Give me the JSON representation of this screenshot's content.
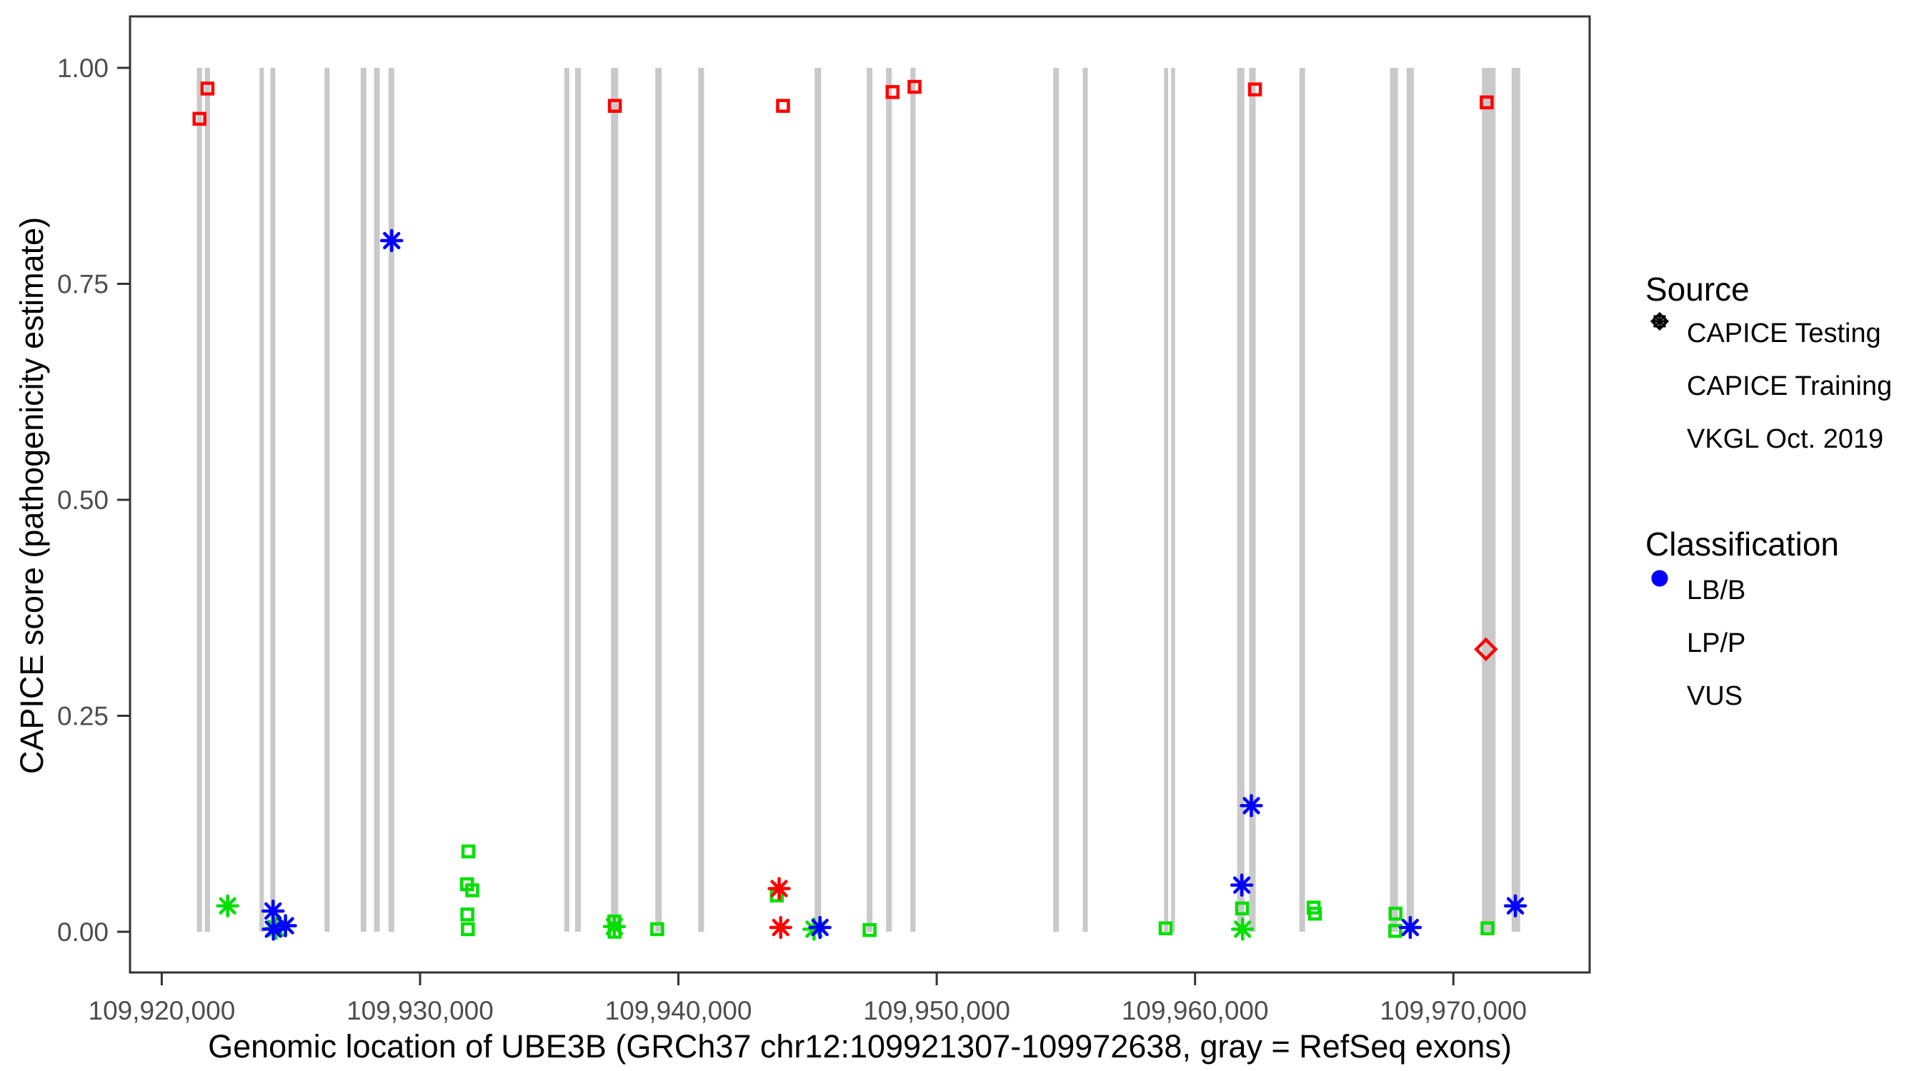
{
  "chart_data": {
    "type": "scatter",
    "title": "",
    "xlabel": "Genomic location of UBE3B (GRCh37 chr12:109921307-109972638, gray = RefSeq exons)",
    "ylabel": "CAPICE score (pathogenicity estimate)",
    "x_domain": [
      109918772,
      109975275
    ],
    "ylim": [
      0,
      1
    ],
    "x_ticks": [
      {
        "value": 109920000,
        "label": "109,920,000"
      },
      {
        "value": 109930000,
        "label": "109,930,000"
      },
      {
        "value": 109940000,
        "label": "109,940,000"
      },
      {
        "value": 109950000,
        "label": "109,950,000"
      },
      {
        "value": 109960000,
        "label": "109,960,000"
      },
      {
        "value": 109970000,
        "label": "109,970,000"
      }
    ],
    "y_ticks": [
      {
        "value": 0.0,
        "label": "0.00"
      },
      {
        "value": 0.25,
        "label": "0.25"
      },
      {
        "value": 0.5,
        "label": "0.50"
      },
      {
        "value": 0.75,
        "label": "0.75"
      },
      {
        "value": 1.0,
        "label": "1.00"
      }
    ],
    "exons_note": "gray vertical bars = RefSeq exons, drawn from score 0 to 1; [center_bp, width_bp]",
    "exons": [
      [
        109921460,
        200
      ],
      [
        109921770,
        200
      ],
      [
        109923870,
        170
      ],
      [
        109924300,
        195
      ],
      [
        109926400,
        195
      ],
      [
        109927810,
        220
      ],
      [
        109928330,
        220
      ],
      [
        109928890,
        220
      ],
      [
        109935680,
        195
      ],
      [
        109936110,
        220
      ],
      [
        109937530,
        280
      ],
      [
        109939230,
        250
      ],
      [
        109940880,
        220
      ],
      [
        109945400,
        250
      ],
      [
        109947400,
        220
      ],
      [
        109948150,
        220
      ],
      [
        109949080,
        200
      ],
      [
        109954620,
        220
      ],
      [
        109955750,
        195
      ],
      [
        109958880,
        160
      ],
      [
        109959150,
        150
      ],
      [
        109961770,
        280
      ],
      [
        109962220,
        250
      ],
      [
        109964150,
        220
      ],
      [
        109967700,
        310
      ],
      [
        109968330,
        280
      ],
      [
        109971370,
        530
      ],
      [
        109972420,
        330
      ]
    ],
    "points_note": "source: testing=open diamond, training=open square, vkgl=asterisk; cls colors in colors{}",
    "points": [
      {
        "source": "training",
        "cls": "LP/P",
        "x": 109921460,
        "y": 0.941
      },
      {
        "source": "training",
        "cls": "LP/P",
        "x": 109921770,
        "y": 0.976
      },
      {
        "source": "training",
        "cls": "LP/P",
        "x": 109937540,
        "y": 0.956
      },
      {
        "source": "training",
        "cls": "LP/P",
        "x": 109944050,
        "y": 0.956
      },
      {
        "source": "training",
        "cls": "LP/P",
        "x": 109948290,
        "y": 0.972
      },
      {
        "source": "training",
        "cls": "LP/P",
        "x": 109949140,
        "y": 0.978
      },
      {
        "source": "training",
        "cls": "LP/P",
        "x": 109962320,
        "y": 0.975
      },
      {
        "source": "training",
        "cls": "LP/P",
        "x": 109971290,
        "y": 0.96
      },
      {
        "source": "testing",
        "cls": "LP/P",
        "x": 109971260,
        "y": 0.327
      },
      {
        "source": "training",
        "cls": "LB/B",
        "x": 109931870,
        "y": 0.093
      },
      {
        "source": "training",
        "cls": "LB/B",
        "x": 109931820,
        "y": 0.055
      },
      {
        "source": "training",
        "cls": "LB/B",
        "x": 109932020,
        "y": 0.048
      },
      {
        "source": "training",
        "cls": "LB/B",
        "x": 109931830,
        "y": 0.02
      },
      {
        "source": "training",
        "cls": "LB/B",
        "x": 109931850,
        "y": 0.003
      },
      {
        "source": "training",
        "cls": "LB/B",
        "x": 109937520,
        "y": 0.012
      },
      {
        "source": "training",
        "cls": "LB/B",
        "x": 109937530,
        "y": 0.0
      },
      {
        "source": "training",
        "cls": "LB/B",
        "x": 109939180,
        "y": 0.003
      },
      {
        "source": "training",
        "cls": "LB/B",
        "x": 109943810,
        "y": 0.042
      },
      {
        "source": "training",
        "cls": "LB/B",
        "x": 109947400,
        "y": 0.002
      },
      {
        "source": "training",
        "cls": "LB/B",
        "x": 109958860,
        "y": 0.004
      },
      {
        "source": "training",
        "cls": "LB/B",
        "x": 109961820,
        "y": 0.027
      },
      {
        "source": "training",
        "cls": "LB/B",
        "x": 109964590,
        "y": 0.028
      },
      {
        "source": "training",
        "cls": "LB/B",
        "x": 109964640,
        "y": 0.021
      },
      {
        "source": "training",
        "cls": "LB/B",
        "x": 109967760,
        "y": 0.021
      },
      {
        "source": "training",
        "cls": "LB/B",
        "x": 109967750,
        "y": 0.001
      },
      {
        "source": "training",
        "cls": "LB/B",
        "x": 109971320,
        "y": 0.004
      },
      {
        "source": "vkgl",
        "cls": "LB/B",
        "x": 109922550,
        "y": 0.03
      },
      {
        "source": "vkgl",
        "cls": "LB/B",
        "x": 109924420,
        "y": 0.004
      },
      {
        "source": "vkgl",
        "cls": "LB/B",
        "x": 109937520,
        "y": 0.006
      },
      {
        "source": "vkgl",
        "cls": "LB/B",
        "x": 109945250,
        "y": 0.003
      },
      {
        "source": "vkgl",
        "cls": "LB/B",
        "x": 109961840,
        "y": 0.003
      },
      {
        "source": "vkgl",
        "cls": "LP/P",
        "x": 109943900,
        "y": 0.05
      },
      {
        "source": "vkgl",
        "cls": "LP/P",
        "x": 109943960,
        "y": 0.005
      },
      {
        "source": "vkgl",
        "cls": "VUS",
        "x": 109928900,
        "y": 0.8
      },
      {
        "source": "vkgl",
        "cls": "VUS",
        "x": 109924310,
        "y": 0.024
      },
      {
        "source": "vkgl",
        "cls": "VUS",
        "x": 109924320,
        "y": 0.003
      },
      {
        "source": "vkgl",
        "cls": "VUS",
        "x": 109924790,
        "y": 0.007
      },
      {
        "source": "vkgl",
        "cls": "VUS",
        "x": 109945480,
        "y": 0.005
      },
      {
        "source": "vkgl",
        "cls": "VUS",
        "x": 109962180,
        "y": 0.146
      },
      {
        "source": "vkgl",
        "cls": "VUS",
        "x": 109961810,
        "y": 0.054
      },
      {
        "source": "vkgl",
        "cls": "VUS",
        "x": 109968330,
        "y": 0.005
      },
      {
        "source": "vkgl",
        "cls": "VUS",
        "x": 109972400,
        "y": 0.03
      }
    ],
    "colors": {
      "exon_gray": "#c9c9c9",
      "LB/B": "#00e000",
      "LP/P": "#ff0000",
      "VUS": "#0000ff",
      "axis_text": "#4d4d4d",
      "border": "#333333"
    },
    "legend_position": "right",
    "grid": false,
    "legend": {
      "source": {
        "title": "Source",
        "items": [
          {
            "label": "CAPICE Testing",
            "marker": "diamond"
          },
          {
            "label": "CAPICE Training",
            "marker": "square"
          },
          {
            "label": "VKGL Oct. 2019",
            "marker": "asterisk"
          }
        ]
      },
      "classification": {
        "title": "Classification",
        "items": [
          {
            "label": "LB/B",
            "color": "#00e000"
          },
          {
            "label": "LP/P",
            "color": "#ff0000"
          },
          {
            "label": "VUS",
            "color": "#0000ff"
          }
        ]
      }
    }
  }
}
